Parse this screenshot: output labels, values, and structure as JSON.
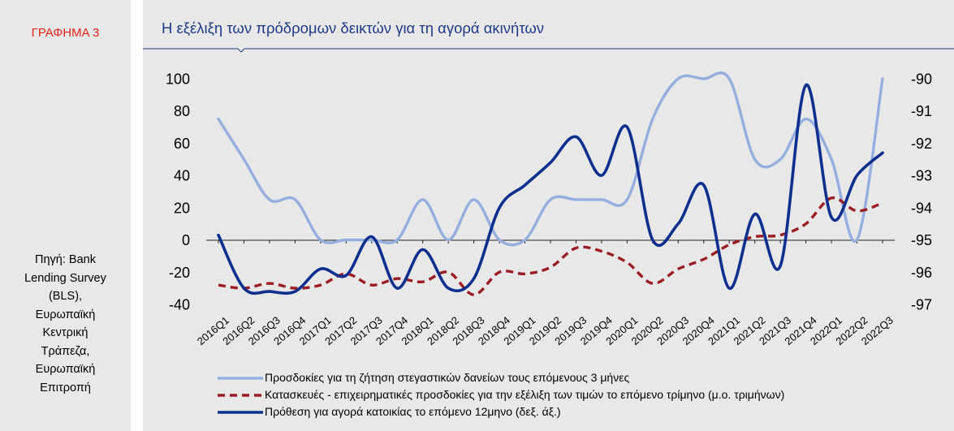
{
  "figure_label": "ΓΡΑΦΗΜΑ 3",
  "source_lines": [
    "Πηγή: Bank",
    "Lending Survey",
    "(BLS),",
    "Ευρωπαϊκή",
    "Κεντρική",
    "Τράπεζα,",
    "Ευρωπαϊκή",
    "Επιτροπή"
  ],
  "colors": {
    "light_blue": "#94aedf",
    "dark_red": "#9b1c23",
    "dark_blue": "#0d2f8e",
    "title": "#1f3b88",
    "figure_label": "#e2231a"
  },
  "chart_data": {
    "type": "line",
    "title": "Η εξέλιξη των πρόδρομων δεικτών για τη αγορά ακινήτων",
    "categories": [
      "2016Q1",
      "2016Q2",
      "2016Q3",
      "2016Q4",
      "2017Q1",
      "2017Q2",
      "2017Q3",
      "2017Q4",
      "2018Q1",
      "2018Q2",
      "2018Q3",
      "2018Q4",
      "2019Q1",
      "2019Q2",
      "2019Q3",
      "2019Q4",
      "2020Q1",
      "2020Q2",
      "2020Q3",
      "2020Q4",
      "2021Q1",
      "2021Q2",
      "2021Q3",
      "2021Q4",
      "2022Q1",
      "2022Q2",
      "2022Q3"
    ],
    "y_left": {
      "ylim": [
        -40,
        100
      ],
      "ticks": [
        "-40",
        "-20",
        "0",
        "20",
        "40",
        "60",
        "80",
        "100"
      ]
    },
    "y_right": {
      "ylim": [
        -97,
        -90
      ],
      "ticks": [
        "-97",
        "-96",
        "-95",
        "-94",
        "-93",
        "-92",
        "-91",
        "-90"
      ]
    },
    "grid": false,
    "legend_position": "bottom",
    "series": [
      {
        "name": "Προσδοκίες για τη ζήτηση στεγαστικών δανείων τους επόμενους 3 μήνες",
        "axis": "left",
        "style": "solid",
        "color": "#94aedf",
        "values": [
          75,
          50,
          25,
          25,
          0,
          0,
          0,
          0,
          25,
          0,
          25,
          0,
          0,
          25,
          25,
          25,
          25,
          75,
          100,
          100,
          100,
          50,
          50,
          75,
          50,
          0,
          100
        ]
      },
      {
        "name": "Κατασκευές - επιχειρηματικές προσδοκίες για την εξέλιξη των τιμών το επόμενο τρίμηνο (μ.ο. τριμήνων)",
        "axis": "left",
        "style": "dashed",
        "color": "#9b1c23",
        "values": [
          -28,
          -30,
          -27,
          -30,
          -28,
          -21,
          -28,
          -24,
          -26,
          -20,
          -34,
          -20,
          -21,
          -17,
          -5,
          -7,
          -14,
          -27,
          -18,
          -12,
          -3,
          2,
          3,
          10,
          26,
          18,
          23
        ]
      },
      {
        "name": "Πρόθεση για αγορά κατοικίας το επόμενο 12μηνο (δεξ. άξ.)",
        "axis": "right",
        "style": "solid",
        "color": "#0d2f8e",
        "values": [
          -94.85,
          -96.5,
          -96.6,
          -96.6,
          -95.9,
          -96.1,
          -94.9,
          -96.5,
          -95.3,
          -96.5,
          -96.2,
          -94.0,
          -93.3,
          -92.6,
          -91.8,
          -93.0,
          -91.5,
          -95.0,
          -94.5,
          -93.3,
          -96.5,
          -94.2,
          -95.8,
          -90.2,
          -94.3,
          -93.0,
          -92.3
        ]
      }
    ]
  }
}
